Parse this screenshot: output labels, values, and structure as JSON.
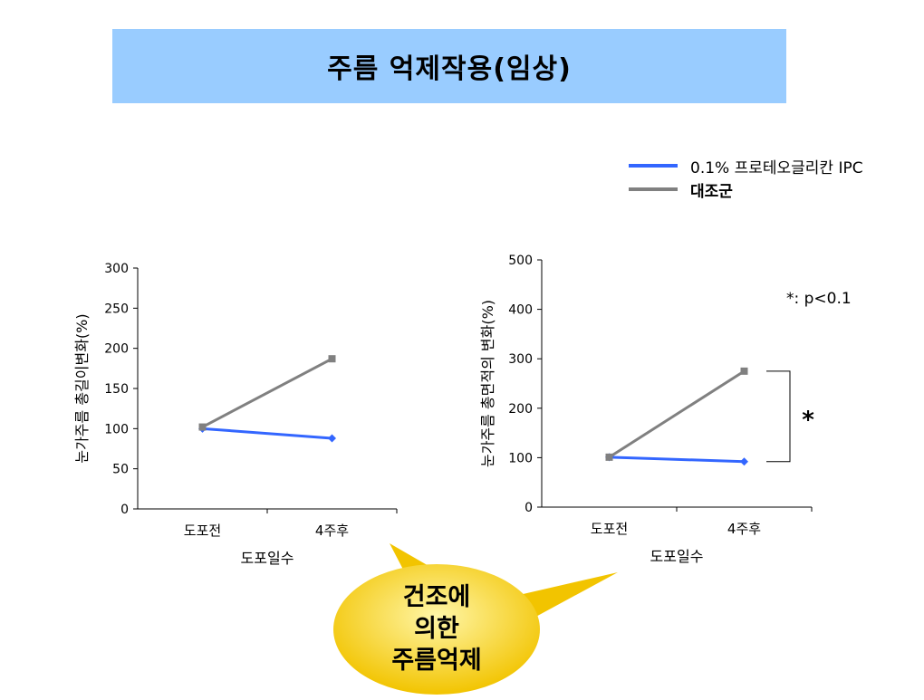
{
  "title": "주름 억제작용(임상)",
  "legend": {
    "items": [
      {
        "label": "0.1% 프로테오글리칸 IPC",
        "color": "#3366ff"
      },
      {
        "label": "대조군",
        "color": "#808080"
      }
    ]
  },
  "p_note": "*: p<0.1",
  "significance_mark": "*",
  "callout": {
    "lines": [
      "건조에",
      "의한",
      "주름억제"
    ],
    "color": "#ffd700"
  },
  "chart_data": [
    {
      "type": "line",
      "categories": [
        "도포전",
        "4주후"
      ],
      "xlabel": "도포일수",
      "ylabel": "눈가주름  총길이변화(%)",
      "ylim": [
        0,
        300
      ],
      "yticks": [
        "0",
        "50",
        "100",
        "150",
        "200",
        "250",
        "300"
      ],
      "series": [
        {
          "name": "0.1% 프로테오글리칸 IPC",
          "values": [
            100,
            88
          ],
          "color": "#3366ff",
          "marker": "diamond"
        },
        {
          "name": "대조군",
          "values": [
            102,
            187
          ],
          "color": "#808080",
          "marker": "square"
        }
      ]
    },
    {
      "type": "line",
      "categories": [
        "도포전",
        "4주후"
      ],
      "xlabel": "도포일수",
      "ylabel": "눈가주름  총면적의 변화(%)",
      "ylim": [
        0,
        500
      ],
      "yticks": [
        "0",
        "100",
        "200",
        "300",
        "400",
        "500"
      ],
      "series": [
        {
          "name": "0.1% 프로테오글리칸 IPC",
          "values": [
            101,
            92
          ],
          "color": "#3366ff",
          "marker": "diamond"
        },
        {
          "name": "대조군",
          "values": [
            101,
            275
          ],
          "color": "#808080",
          "marker": "square"
        }
      ]
    }
  ]
}
